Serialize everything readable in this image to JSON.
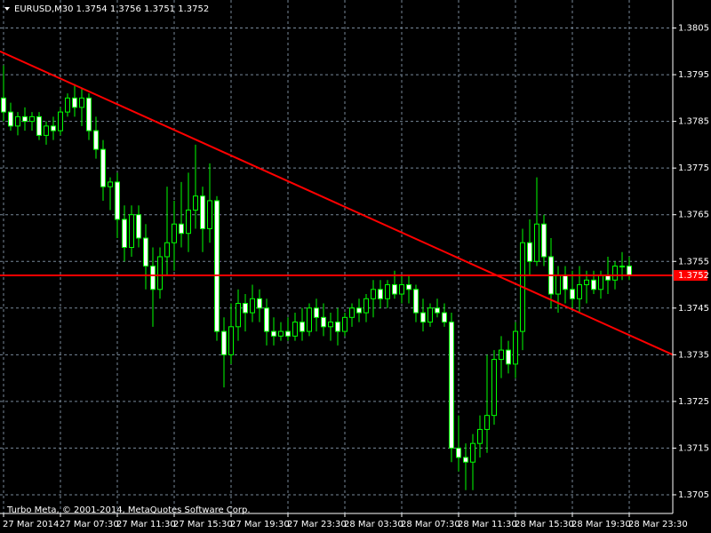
{
  "chart_data": {
    "type": "candlestick",
    "symbol": "EURUSD,M30",
    "header_values": [
      1.3754,
      1.3756,
      1.3751,
      1.3752
    ],
    "footer": "Turbo Meta, © 2001-2014, MetaQuotes Software Corp.",
    "categories": [
      "27 Mar 2014",
      null,
      null,
      null,
      null,
      null,
      null,
      null,
      "27 Mar 07:30",
      null,
      null,
      null,
      null,
      null,
      null,
      null,
      "27 Mar 11:30",
      null,
      null,
      null,
      null,
      null,
      null,
      null,
      "27 Mar 15:30",
      null,
      null,
      null,
      null,
      null,
      null,
      null,
      "27 Mar 19:30",
      null,
      null,
      null,
      null,
      null,
      null,
      null,
      "27 Mar 23:30",
      null,
      null,
      null,
      null,
      null,
      null,
      null,
      "28 Mar 03:30",
      null,
      null,
      null,
      null,
      null,
      null,
      null,
      "28 Mar 07:30",
      null,
      null,
      null,
      null,
      null,
      null,
      null,
      "28 Mar 11:30",
      null,
      null,
      null,
      null,
      null,
      null,
      null,
      "28 Mar 15:30",
      null,
      null,
      null,
      null,
      null,
      null,
      null,
      "28 Mar 19:30",
      null,
      null,
      null,
      null,
      null,
      null,
      null,
      "28 Mar 23:30"
    ],
    "open": [
      1.379,
      1.3787,
      1.3784,
      1.3786,
      1.3785,
      1.3786,
      1.3782,
      1.3784,
      1.3783,
      1.3787,
      1.379,
      1.3788,
      1.379,
      1.3783,
      1.3779,
      1.3771,
      1.3772,
      1.3764,
      1.3758,
      1.3765,
      1.376,
      1.3754,
      1.3749,
      1.3756,
      1.3759,
      1.3763,
      1.3761,
      1.3766,
      1.3769,
      1.3762,
      1.3768,
      1.374,
      1.3735,
      1.3741,
      1.3746,
      1.3744,
      1.3747,
      1.3745,
      1.374,
      1.3739,
      1.374,
      1.3739,
      1.3742,
      1.374,
      1.3745,
      1.3743,
      1.3741,
      1.3742,
      1.374,
      1.3743,
      1.3745,
      1.3744,
      1.3747,
      1.3749,
      1.3747,
      1.375,
      1.3748,
      1.375,
      1.3749,
      1.3744,
      1.3742,
      1.3745,
      1.3744,
      1.3742,
      1.3715,
      1.3713,
      1.3712,
      1.3716,
      1.3719,
      1.3722,
      1.3734,
      1.3736,
      1.3733,
      1.374,
      1.3759,
      1.3755,
      1.3763,
      1.3756,
      1.3748,
      1.3752,
      1.3749,
      1.3747,
      1.375,
      1.3751,
      1.3749,
      1.3752,
      1.3751,
      1.3754,
      1.3754
    ],
    "high": [
      1.3797,
      1.3789,
      1.3787,
      1.3788,
      1.3787,
      1.3787,
      1.3785,
      1.3786,
      1.3788,
      1.3791,
      1.3793,
      1.3792,
      1.3791,
      1.3786,
      1.3781,
      1.3773,
      1.3774,
      1.3767,
      1.3767,
      1.3767,
      1.3763,
      1.3758,
      1.3758,
      1.3771,
      1.3768,
      1.3772,
      1.3774,
      1.378,
      1.3771,
      1.3776,
      1.3769,
      1.3743,
      1.3746,
      1.3749,
      1.3748,
      1.375,
      1.3749,
      1.3747,
      1.3743,
      1.3742,
      1.3743,
      1.3744,
      1.3745,
      1.3746,
      1.3747,
      1.3746,
      1.3744,
      1.3745,
      1.3744,
      1.3746,
      1.3747,
      1.3748,
      1.3751,
      1.3751,
      1.3751,
      1.3753,
      1.3752,
      1.3752,
      1.375,
      1.3747,
      1.3746,
      1.3747,
      1.3746,
      1.3744,
      1.3722,
      1.3716,
      1.3718,
      1.3722,
      1.3735,
      1.3736,
      1.3739,
      1.3738,
      1.3742,
      1.3762,
      1.3764,
      1.3773,
      1.3765,
      1.376,
      1.3754,
      1.3754,
      1.3753,
      1.3754,
      1.3753,
      1.3753,
      1.3753,
      1.3756,
      1.3755,
      1.3757,
      1.3756
    ],
    "low": [
      1.3785,
      1.3783,
      1.3782,
      1.3783,
      1.3783,
      1.3781,
      1.378,
      1.3781,
      1.3782,
      1.3786,
      1.3786,
      1.3784,
      1.3781,
      1.3777,
      1.3768,
      1.3766,
      1.376,
      1.3755,
      1.3756,
      1.3758,
      1.3749,
      1.3741,
      1.3747,
      1.3752,
      1.3753,
      1.3758,
      1.3757,
      1.3762,
      1.3757,
      1.3759,
      1.3738,
      1.3728,
      1.3733,
      1.3738,
      1.374,
      1.3742,
      1.3742,
      1.3737,
      1.3737,
      1.3738,
      1.3738,
      1.3738,
      1.3738,
      1.3739,
      1.374,
      1.3739,
      1.3738,
      1.3737,
      1.3739,
      1.3741,
      1.3742,
      1.3742,
      1.3743,
      1.3745,
      1.3745,
      1.3747,
      1.3746,
      1.3746,
      1.3742,
      1.374,
      1.3741,
      1.3743,
      1.3741,
      1.3712,
      1.371,
      1.3706,
      1.3706,
      1.3713,
      1.3714,
      1.372,
      1.373,
      1.3731,
      1.373,
      1.3736,
      1.3752,
      1.3754,
      1.3754,
      1.3745,
      1.3744,
      1.3746,
      1.3745,
      1.3744,
      1.3746,
      1.3748,
      1.3747,
      1.3748,
      1.3749,
      1.3751,
      1.3751
    ],
    "close": [
      1.3787,
      1.3784,
      1.3786,
      1.3785,
      1.3786,
      1.3782,
      1.3784,
      1.3783,
      1.3787,
      1.379,
      1.3788,
      1.379,
      1.3783,
      1.3779,
      1.3771,
      1.3772,
      1.3764,
      1.3758,
      1.3765,
      1.376,
      1.3754,
      1.3749,
      1.3756,
      1.3759,
      1.3763,
      1.3761,
      1.3766,
      1.3769,
      1.3762,
      1.3768,
      1.374,
      1.3735,
      1.3741,
      1.3746,
      1.3744,
      1.3747,
      1.3745,
      1.374,
      1.3739,
      1.374,
      1.3739,
      1.3742,
      1.374,
      1.3745,
      1.3743,
      1.3741,
      1.3742,
      1.374,
      1.3743,
      1.3745,
      1.3744,
      1.3747,
      1.3749,
      1.3747,
      1.375,
      1.3748,
      1.375,
      1.3749,
      1.3744,
      1.3742,
      1.3745,
      1.3744,
      1.3742,
      1.3715,
      1.3713,
      1.3712,
      1.3716,
      1.3719,
      1.3722,
      1.3734,
      1.3736,
      1.3733,
      1.374,
      1.3759,
      1.3755,
      1.3763,
      1.3756,
      1.3748,
      1.3752,
      1.3749,
      1.3747,
      1.375,
      1.3751,
      1.3749,
      1.3752,
      1.3751,
      1.3754,
      1.3754,
      1.3752
    ],
    "ylim": [
      1.3701,
      1.3811
    ],
    "yticks": [
      1.3705,
      1.3715,
      1.3725,
      1.3735,
      1.3745,
      1.3755,
      1.3765,
      1.3775,
      1.3785,
      1.3795,
      1.3805
    ],
    "grid": true,
    "candle_color": "#00ff00",
    "trendline": [
      1.38,
      1.3735
    ],
    "price_line": 1.3752,
    "line_color": "#ff0000"
  }
}
